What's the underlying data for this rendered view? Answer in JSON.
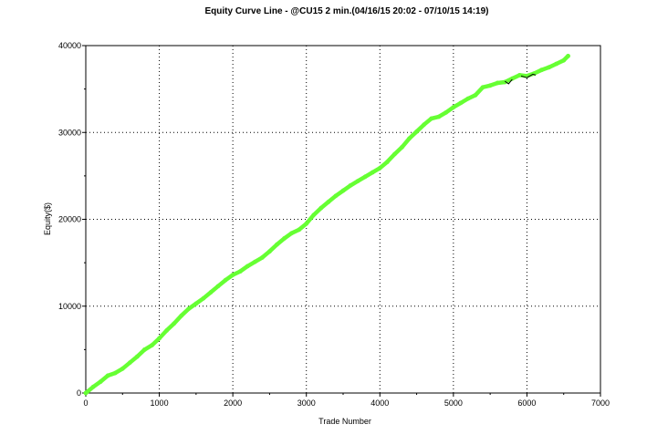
{
  "chart_data": {
    "type": "line",
    "title": "Equity Curve Line - @CU15 2 min.(04/16/15 20:02 - 07/10/15 14:19)",
    "xlabel": "Trade Number",
    "ylabel": "Equity($)",
    "xlim": [
      0,
      7000
    ],
    "ylim": [
      0,
      40000
    ],
    "x_ticks": [
      "0",
      "1000",
      "2000",
      "3000",
      "4000",
      "5000",
      "6000",
      "7000"
    ],
    "y_ticks": [
      "0",
      "10000",
      "20000",
      "30000",
      "40000"
    ],
    "grid": true,
    "colors": {
      "line": "#66ff33",
      "drawdown": "#000000",
      "grid": "#000000"
    },
    "series": [
      {
        "points": [
          [
            0,
            0
          ],
          [
            100,
            700
          ],
          [
            200,
            1300
          ],
          [
            300,
            2000
          ],
          [
            400,
            2300
          ],
          [
            500,
            2800
          ],
          [
            600,
            3500
          ],
          [
            700,
            4200
          ],
          [
            800,
            5000
          ],
          [
            900,
            5500
          ],
          [
            1000,
            6300
          ],
          [
            1100,
            7200
          ],
          [
            1200,
            8000
          ],
          [
            1300,
            8900
          ],
          [
            1400,
            9700
          ],
          [
            1500,
            10300
          ],
          [
            1600,
            10900
          ],
          [
            1700,
            11600
          ],
          [
            1800,
            12300
          ],
          [
            1900,
            13000
          ],
          [
            2000,
            13600
          ],
          [
            2100,
            14000
          ],
          [
            2200,
            14600
          ],
          [
            2300,
            15100
          ],
          [
            2400,
            15600
          ],
          [
            2500,
            16300
          ],
          [
            2600,
            17100
          ],
          [
            2700,
            17800
          ],
          [
            2800,
            18400
          ],
          [
            2900,
            18800
          ],
          [
            3000,
            19500
          ],
          [
            3100,
            20500
          ],
          [
            3200,
            21300
          ],
          [
            3300,
            22000
          ],
          [
            3400,
            22700
          ],
          [
            3500,
            23300
          ],
          [
            3600,
            23900
          ],
          [
            3700,
            24400
          ],
          [
            3800,
            24900
          ],
          [
            3900,
            25400
          ],
          [
            4000,
            25900
          ],
          [
            4100,
            26600
          ],
          [
            4200,
            27500
          ],
          [
            4300,
            28300
          ],
          [
            4400,
            29300
          ],
          [
            4500,
            30100
          ],
          [
            4600,
            30900
          ],
          [
            4700,
            31600
          ],
          [
            4800,
            31800
          ],
          [
            4900,
            32300
          ],
          [
            5000,
            32900
          ],
          [
            5100,
            33400
          ],
          [
            5200,
            33900
          ],
          [
            5300,
            34300
          ],
          [
            5400,
            35200
          ],
          [
            5500,
            35400
          ],
          [
            5600,
            35700
          ],
          [
            5700,
            35800
          ],
          [
            5800,
            36200
          ],
          [
            5900,
            36600
          ],
          [
            6000,
            36500
          ],
          [
            6100,
            36800
          ],
          [
            6200,
            37200
          ],
          [
            6300,
            37500
          ],
          [
            6400,
            37900
          ],
          [
            6500,
            38300
          ],
          [
            6560,
            38800
          ]
        ]
      }
    ],
    "drawdown_segments": [
      [
        [
          5700,
          35900
        ],
        [
          5750,
          35600
        ],
        [
          5800,
          36100
        ]
      ],
      [
        [
          5920,
          36500
        ],
        [
          6000,
          36300
        ],
        [
          6080,
          36700
        ],
        [
          6120,
          36600
        ]
      ]
    ]
  }
}
